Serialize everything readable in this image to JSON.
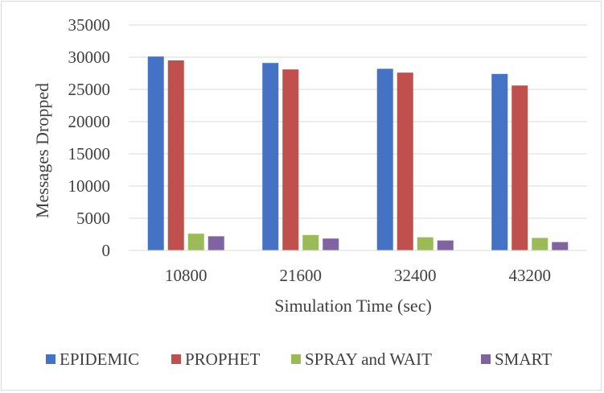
{
  "chart_data": {
    "type": "bar",
    "title": "",
    "xlabel": "Simulation Time (sec)",
    "ylabel": "Messages Dropped",
    "categories": [
      "10800",
      "21600",
      "32400",
      "43200"
    ],
    "ylim": [
      0,
      35000
    ],
    "yticks": [
      0,
      5000,
      10000,
      15000,
      20000,
      25000,
      30000,
      35000
    ],
    "grid": true,
    "legend_position": "bottom",
    "series": [
      {
        "name": "EPIDEMIC",
        "color": "#4472c4",
        "values": [
          30100,
          29100,
          28200,
          27400
        ]
      },
      {
        "name": "PROPHET",
        "color": "#c0504d",
        "values": [
          29500,
          28100,
          27600,
          25600
        ]
      },
      {
        "name": "SPRAY and WAIT",
        "color": "#9bbb59",
        "values": [
          2600,
          2400,
          2050,
          1950
        ]
      },
      {
        "name": "SMART",
        "color": "#8064a2",
        "values": [
          2200,
          1850,
          1550,
          1300
        ]
      }
    ]
  }
}
